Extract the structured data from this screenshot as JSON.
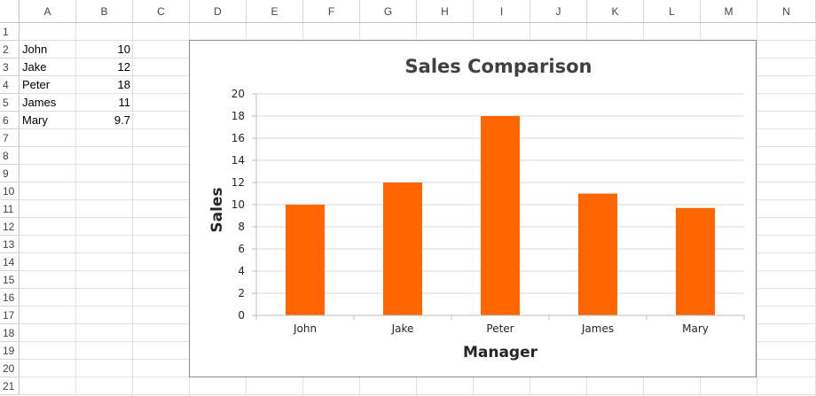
{
  "spreadsheet": {
    "columns": [
      "A",
      "B",
      "C",
      "D",
      "E",
      "F",
      "G",
      "H",
      "I",
      "J",
      "K",
      "L",
      "M",
      "N"
    ],
    "rows": [
      "1",
      "2",
      "3",
      "4",
      "5",
      "6",
      "7",
      "8",
      "9",
      "10",
      "11",
      "12",
      "13",
      "14",
      "15",
      "16",
      "17",
      "18",
      "19",
      "20",
      "21"
    ],
    "data": [
      {
        "name": "John",
        "value": "10"
      },
      {
        "name": "Jake",
        "value": "12"
      },
      {
        "name": "Peter",
        "value": "18"
      },
      {
        "name": "James",
        "value": "11"
      },
      {
        "name": "Mary",
        "value": "9.7"
      }
    ]
  },
  "chart_data": {
    "type": "bar",
    "title": "Sales Comparison",
    "xlabel": "Manager",
    "ylabel": "Sales",
    "categories": [
      "John",
      "Jake",
      "Peter",
      "James",
      "Mary"
    ],
    "values": [
      10,
      12,
      18,
      11,
      9.7
    ],
    "ylim": [
      0,
      20
    ],
    "yticks": [
      0,
      2,
      4,
      6,
      8,
      10,
      12,
      14,
      16,
      18,
      20
    ],
    "grid": true,
    "legend": "none",
    "bar_color": "#FF6600",
    "grid_color": "#D9D9D9"
  }
}
